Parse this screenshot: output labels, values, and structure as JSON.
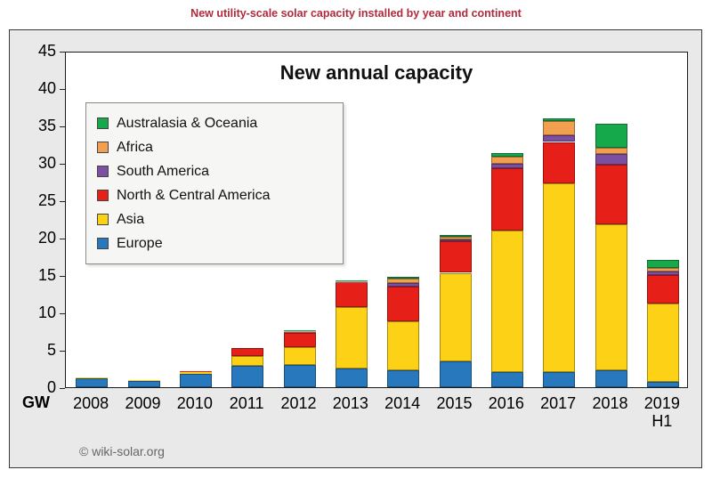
{
  "header": {
    "title": "New utility-scale solar capacity installed by year and continent"
  },
  "footer": {
    "credit": "© wiki-solar.org"
  },
  "colors": {
    "header_title": "#b02a3c",
    "panel_background": "#e9e9e9",
    "plot_background": "#ffffff"
  },
  "chart_data": {
    "type": "bar",
    "stacked": true,
    "title": "New annual capacity",
    "unit": "GW",
    "xlabel": "",
    "ylabel": "GW",
    "ylim": [
      0,
      45
    ],
    "ytick_step": 5,
    "ytick_labels": [
      "0",
      "5",
      "10",
      "15",
      "20",
      "25",
      "30",
      "35",
      "40",
      "45"
    ],
    "grid": false,
    "legend_position": "top-left-inside",
    "categories": [
      "2008",
      "2009",
      "2010",
      "2011",
      "2012",
      "2013",
      "2014",
      "2015",
      "2016",
      "2017",
      "2018",
      "2019"
    ],
    "category_sublabels": {
      "2019": "H1"
    },
    "series": [
      {
        "name": "Europe",
        "color": "#2878be",
        "values": [
          1.2,
          0.8,
          1.8,
          2.8,
          3.0,
          2.5,
          2.3,
          3.5,
          2.0,
          2.0,
          2.3,
          0.7
        ]
      },
      {
        "name": "Asia",
        "color": "#fcd116",
        "values": [
          0.1,
          0.1,
          0.2,
          1.4,
          2.4,
          8.2,
          6.5,
          11.8,
          19.0,
          25.3,
          19.5,
          10.5
        ]
      },
      {
        "name": "North & Central America",
        "color": "#e62019",
        "values": [
          0.0,
          0.0,
          0.2,
          1.0,
          1.9,
          3.3,
          4.7,
          4.2,
          8.3,
          5.5,
          8.0,
          3.8
        ]
      },
      {
        "name": "South America",
        "color": "#7d4fa2",
        "values": [
          0.0,
          0.0,
          0.0,
          0.0,
          0.1,
          0.1,
          0.4,
          0.3,
          0.6,
          0.9,
          1.4,
          0.5
        ]
      },
      {
        "name": "Africa",
        "color": "#f0a04e",
        "values": [
          0.0,
          0.0,
          0.0,
          0.0,
          0.1,
          0.1,
          0.6,
          0.3,
          0.9,
          1.9,
          0.8,
          0.4
        ]
      },
      {
        "name": "Australasia & Oceania",
        "color": "#16a94c",
        "values": [
          0.0,
          0.0,
          0.0,
          0.0,
          0.1,
          0.1,
          0.3,
          0.3,
          0.5,
          0.4,
          3.2,
          1.1
        ]
      }
    ],
    "totals": [
      1.3,
      0.9,
      2.2,
      5.2,
      7.6,
      14.3,
      14.8,
      20.4,
      31.3,
      36.0,
      35.2,
      17.0
    ]
  }
}
